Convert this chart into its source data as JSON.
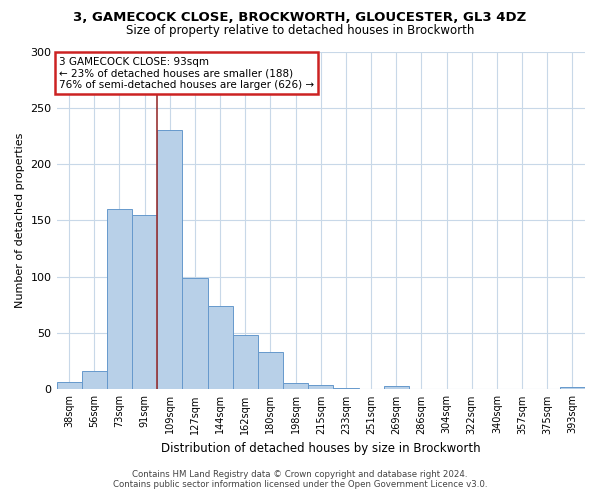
{
  "title1": "3, GAMECOCK CLOSE, BROCKWORTH, GLOUCESTER, GL3 4DZ",
  "title2": "Size of property relative to detached houses in Brockworth",
  "xlabel": "Distribution of detached houses by size in Brockworth",
  "ylabel": "Number of detached properties",
  "footer1": "Contains HM Land Registry data © Crown copyright and database right 2024.",
  "footer2": "Contains public sector information licensed under the Open Government Licence v3.0.",
  "annotation_title": "3 GAMECOCK CLOSE: 93sqm",
  "annotation_line2": "← 23% of detached houses are smaller (188)",
  "annotation_line3": "76% of semi-detached houses are larger (626) →",
  "bar_labels": [
    "38sqm",
    "56sqm",
    "73sqm",
    "91sqm",
    "109sqm",
    "127sqm",
    "144sqm",
    "162sqm",
    "180sqm",
    "198sqm",
    "215sqm",
    "233sqm",
    "251sqm",
    "269sqm",
    "286sqm",
    "304sqm",
    "322sqm",
    "340sqm",
    "357sqm",
    "375sqm",
    "393sqm"
  ],
  "bar_values": [
    7,
    16,
    160,
    155,
    230,
    99,
    74,
    48,
    33,
    6,
    4,
    1,
    0,
    3,
    0,
    0,
    0,
    0,
    0,
    0,
    2
  ],
  "bar_color": "#b8d0e8",
  "bar_edge_color": "#6699cc",
  "background_color": "#ffffff",
  "grid_color": "#c8d8e8",
  "ylim": [
    0,
    300
  ],
  "yticks": [
    0,
    50,
    100,
    150,
    200,
    250,
    300
  ],
  "annotation_box_color": "#ffffff",
  "annotation_box_edge": "#cc2222",
  "vline_color": "#993333",
  "vline_x": 3.5
}
